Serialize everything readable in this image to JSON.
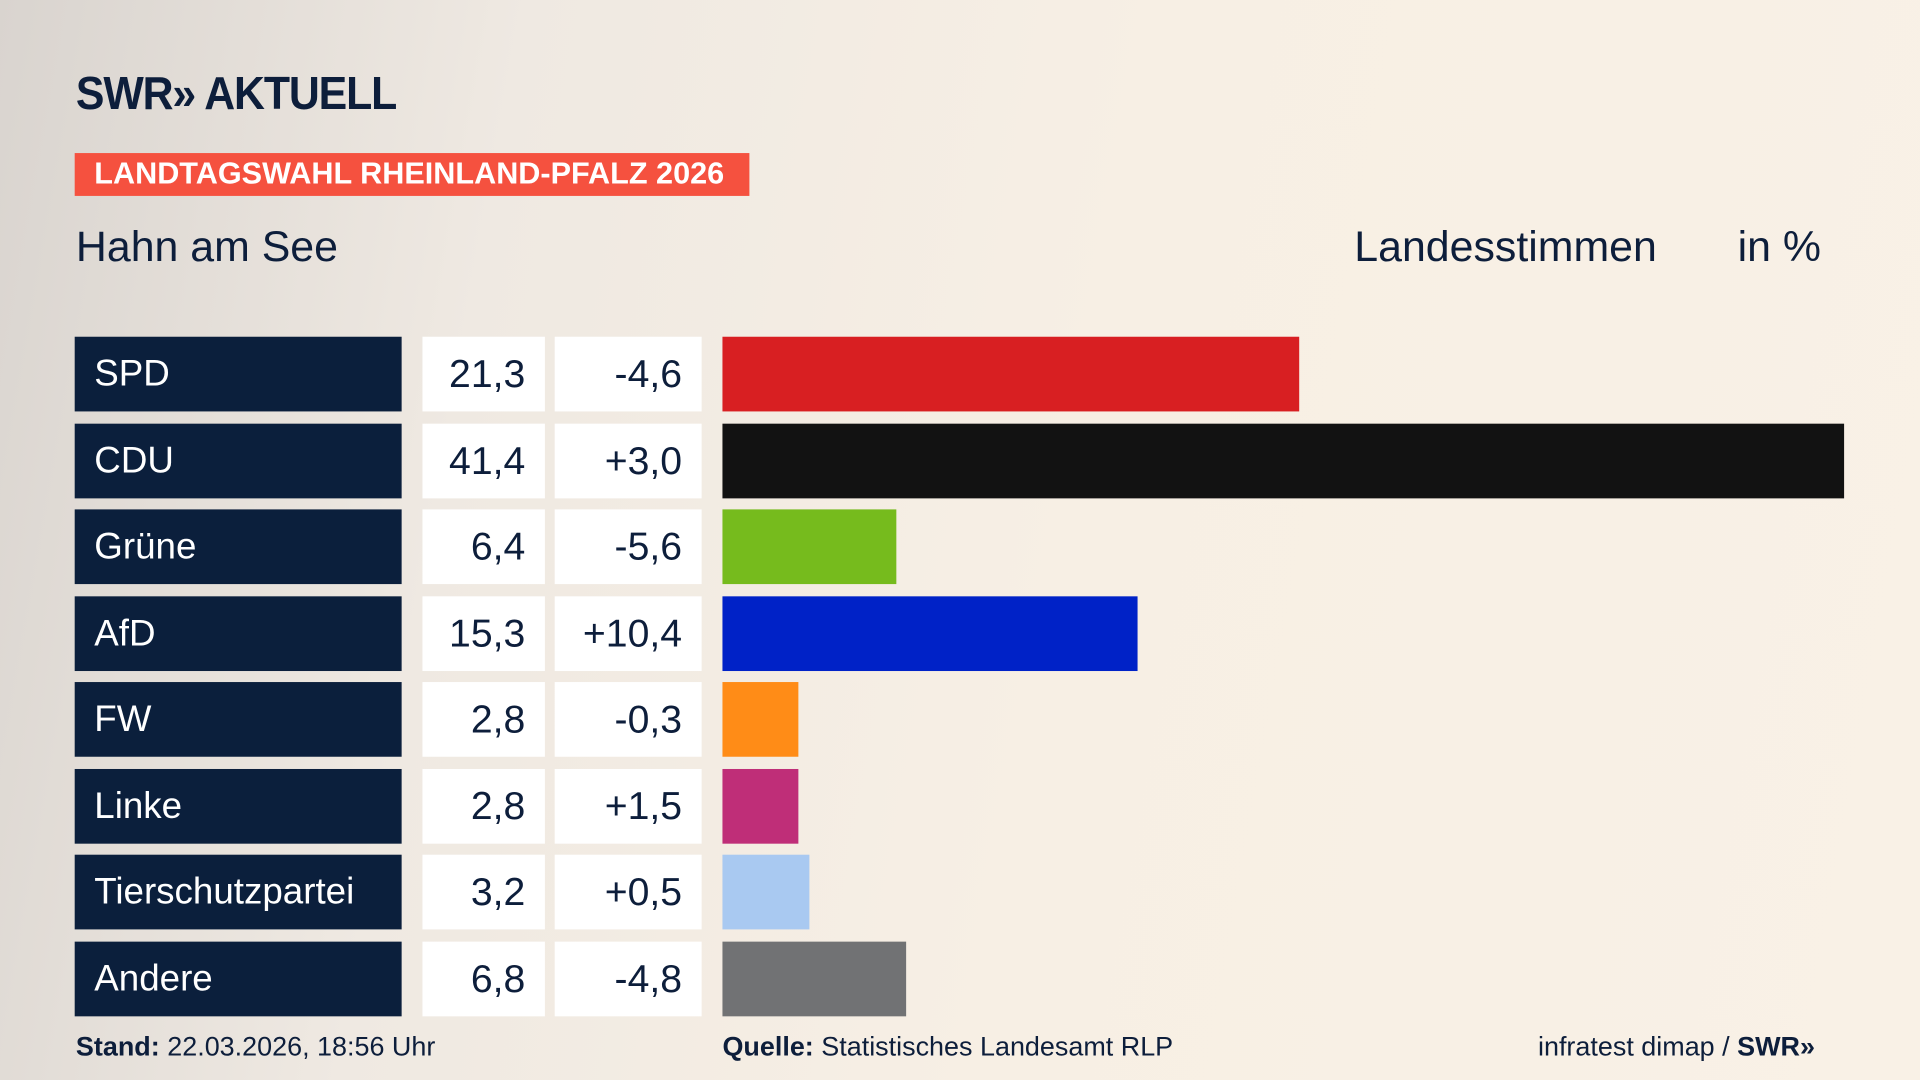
{
  "header": {
    "logo": "SWR» AKTUELL",
    "banner": "LANDTAGSWAHL RHEINLAND-PFALZ 2026",
    "banner_color": "#f5513f",
    "location": "Hahn am See",
    "measure": "Landesstimmen",
    "unit": "in %"
  },
  "chart_data": {
    "type": "bar",
    "orientation": "horizontal",
    "xlim": [
      0,
      41.4
    ],
    "categories": [
      "SPD",
      "CDU",
      "Grüne",
      "AfD",
      "FW",
      "Linke",
      "Tierschutzpartei",
      "Andere"
    ],
    "values": [
      21.3,
      41.4,
      6.4,
      15.3,
      2.8,
      2.8,
      3.2,
      6.8
    ],
    "value_labels": [
      "21,3",
      "41,4",
      "6,4",
      "15,3",
      "2,8",
      "2,8",
      "3,2",
      "6,8"
    ],
    "diff_labels": [
      "-4,6",
      "+3,0",
      "-5,6",
      "+10,4",
      "-0,3",
      "+1,5",
      "+0,5",
      "-4,8"
    ],
    "colors": [
      "#d81f22",
      "#121212",
      "#76bb1d",
      "#0022c7",
      "#ff8c17",
      "#bf2e78",
      "#a9c9f1",
      "#717274"
    ]
  },
  "footer": {
    "stand_label": "Stand:",
    "stand_value": "22.03.2026, 18:56 Uhr",
    "source_label": "Quelle:",
    "source_value": "Statistisches Landesamt RLP",
    "credit": "infratest dimap /",
    "credit_logo": "SWR»"
  }
}
